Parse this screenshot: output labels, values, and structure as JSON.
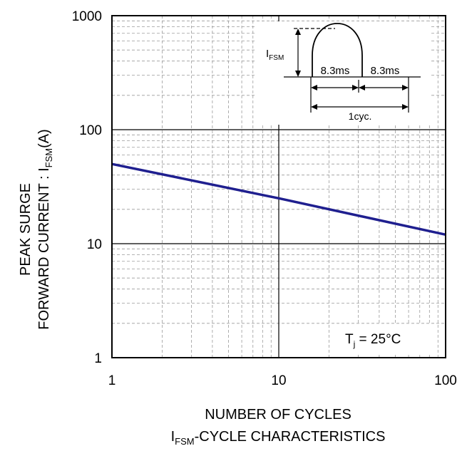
{
  "chart_data": {
    "type": "line",
    "title": "",
    "xlabel": "NUMBER OF CYCLES",
    "ylabel_line1": "PEAK SURGE",
    "ylabel_line2_prefix": "FORWARD CURRENT : I",
    "ylabel_line2_sub": "FSM",
    "ylabel_line2_suffix": "(A)",
    "caption_prefix": "I",
    "caption_sub": "FSM",
    "caption_suffix": "-CYCLE CHARACTERISTICS",
    "x_scale": "log",
    "y_scale": "log",
    "xlim": [
      1,
      100
    ],
    "ylim": [
      1,
      1000
    ],
    "x_ticks": [
      {
        "value": 1,
        "label": "1"
      },
      {
        "value": 10,
        "label": "10"
      },
      {
        "value": 100,
        "label": "100"
      }
    ],
    "y_ticks": [
      {
        "value": 1,
        "label": "1"
      },
      {
        "value": 10,
        "label": "10"
      },
      {
        "value": 100,
        "label": "100"
      },
      {
        "value": 1000,
        "label": "1000"
      }
    ],
    "grid": "major and minor",
    "series": [
      {
        "color": "#1f1f8f",
        "x": [
          1,
          10,
          100
        ],
        "y": [
          50,
          25,
          12
        ]
      }
    ],
    "annotation": {
      "tj_prefix": "T",
      "tj_sub": "j",
      "tj_suffix": " = 25°C",
      "inset_label_main": "I",
      "inset_label_sub": "FSM",
      "inset_half_cycle_1": "8.3ms",
      "inset_half_cycle_2": "8.3ms",
      "inset_cycle": "1cyc."
    }
  }
}
